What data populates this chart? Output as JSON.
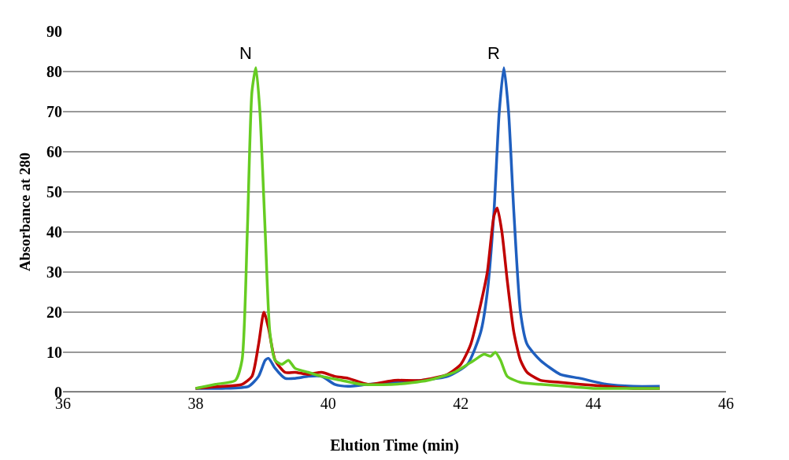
{
  "chart_data": {
    "type": "line",
    "xlabel": "Elution Time (min)",
    "ylabel": "Absorbance at 280",
    "xlim": [
      36,
      46
    ],
    "xticks": [
      36,
      38,
      40,
      42,
      44,
      46
    ],
    "ylim": [
      0,
      90
    ],
    "yticks": [
      0,
      10,
      20,
      30,
      40,
      50,
      60,
      70,
      80,
      90
    ],
    "grid": "y",
    "marker": "none",
    "line_style": "solid",
    "annotations": [
      "N",
      "R"
    ],
    "series": [
      {
        "color": "#1f5fbf",
        "x": [
          38,
          38.4,
          38.8,
          38.95,
          39.05,
          39.1,
          39.2,
          39.35,
          39.5,
          39.7,
          39.9,
          40.1,
          40.3,
          40.6,
          41,
          41.4,
          41.8,
          42.1,
          42.3,
          42.4,
          42.5,
          42.58,
          42.65,
          42.72,
          42.8,
          42.9,
          43,
          43.2,
          43.5,
          43.8,
          44.2,
          44.6,
          45
        ],
        "values": [
          1,
          1,
          1.5,
          4,
          8,
          8.5,
          6,
          3.5,
          3.5,
          4,
          4,
          2,
          1.5,
          2,
          2.5,
          3,
          4,
          7,
          15,
          25,
          45,
          70,
          81,
          70,
          45,
          20,
          12,
          8,
          4.5,
          3.5,
          2,
          1.5,
          1.5
        ]
      },
      {
        "color": "#c00000",
        "x": [
          38,
          38.4,
          38.7,
          38.85,
          38.95,
          39.03,
          39.1,
          39.2,
          39.35,
          39.5,
          39.7,
          39.9,
          40.1,
          40.3,
          40.6,
          41,
          41.4,
          41.8,
          42,
          42.15,
          42.3,
          42.4,
          42.5,
          42.55,
          42.62,
          42.7,
          42.8,
          42.9,
          43,
          43.2,
          43.5,
          43.8,
          44.2,
          44.6,
          45
        ],
        "values": [
          1,
          1.5,
          2,
          4,
          12,
          20,
          16,
          8,
          5,
          5,
          4.5,
          5,
          4,
          3.5,
          2,
          3,
          3,
          4.5,
          7,
          12,
          22,
          30,
          44,
          46,
          40,
          28,
          15,
          8,
          5,
          3,
          2.5,
          2,
          1.5,
          1,
          1
        ]
      },
      {
        "color": "#66cc22",
        "x": [
          38,
          38.3,
          38.6,
          38.7,
          38.78,
          38.85,
          38.91,
          38.97,
          39.05,
          39.12,
          39.2,
          39.3,
          39.4,
          39.5,
          39.7,
          39.9,
          40.2,
          40.5,
          41,
          41.5,
          41.9,
          42.2,
          42.35,
          42.45,
          42.52,
          42.6,
          42.7,
          42.9,
          43.2,
          43.6,
          44,
          44.5,
          45
        ],
        "values": [
          1,
          2,
          3,
          8,
          40,
          75,
          81,
          70,
          40,
          15,
          8,
          7,
          8,
          6,
          5,
          4,
          3,
          2,
          2,
          3,
          5,
          8,
          9.5,
          9,
          10,
          8,
          4,
          2.5,
          2,
          1.5,
          1,
          1,
          1
        ]
      }
    ]
  }
}
